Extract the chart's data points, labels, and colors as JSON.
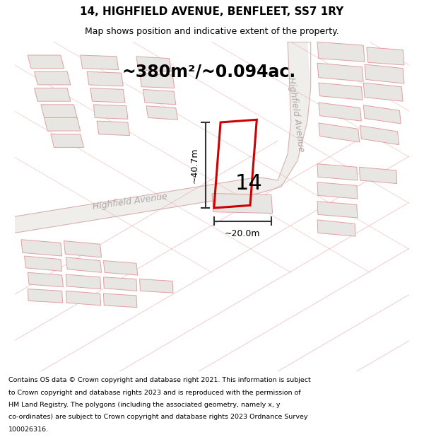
{
  "title": "14, HIGHFIELD AVENUE, BENFLEET, SS7 1RY",
  "subtitle": "Map shows position and indicative extent of the property.",
  "area_text": "~380m²/~0.094ac.",
  "width_label": "~20.0m",
  "height_label": "~40.7m",
  "plot_number": "14",
  "road_label_diag": "Highfield Avenue",
  "road_label_vert": "Highfield Avenue",
  "footer_lines": [
    "Contains OS data © Crown copyright and database right 2021. This information is subject",
    "to Crown copyright and database rights 2023 and is reproduced with the permission of",
    "HM Land Registry. The polygons (including the associated geometry, namely x, y",
    "co-ordinates) are subject to Crown copyright and database rights 2023 Ordnance Survey",
    "100026316."
  ],
  "map_bg": "#f7f5f2",
  "building_fill": "#e8e6e3",
  "building_edge": "#e0a0a0",
  "road_fill": "#f0eeeb",
  "road_edge": "#d8b0b0",
  "plot_edge": "#cc0000",
  "plot_fill": "#ffffff",
  "dim_line_color": "#333333",
  "text_dark": "#333333",
  "road_text_color": "#aaaaaa",
  "footer_bg": "#ffffff",
  "title_fontsize": 11,
  "subtitle_fontsize": 9,
  "area_fontsize": 17,
  "plot_num_fontsize": 22,
  "dim_fontsize": 9,
  "road_fontsize": 9,
  "footer_fontsize": 6.8
}
